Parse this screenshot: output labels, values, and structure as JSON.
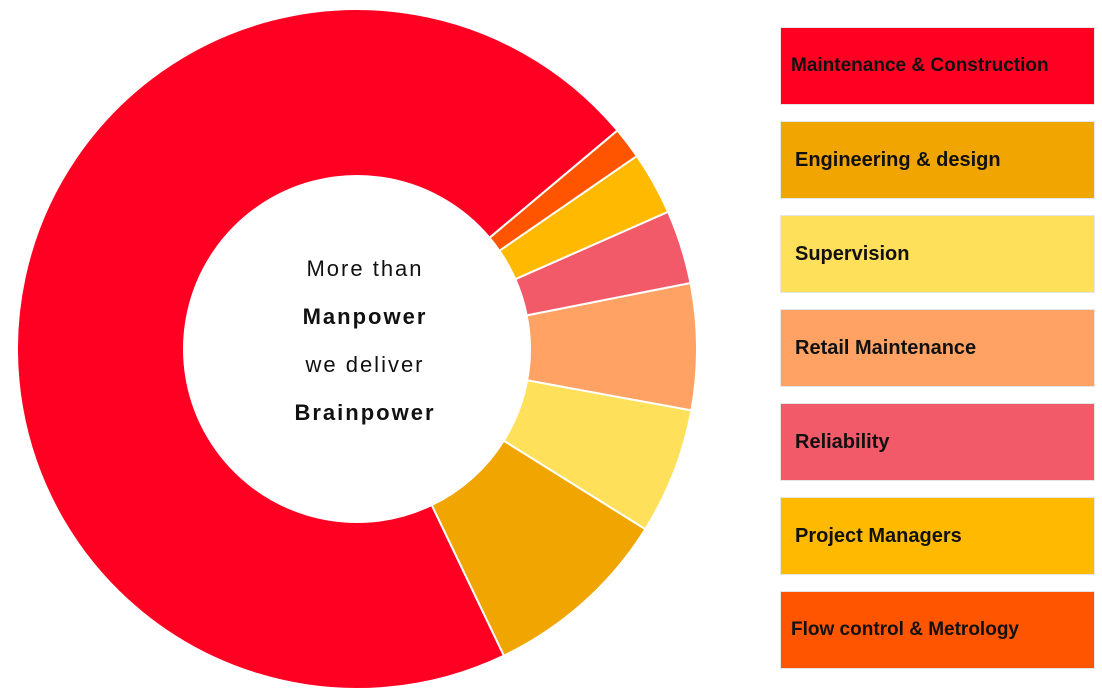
{
  "center": {
    "line1": "More than",
    "line2": "Manpower",
    "line3": "we deliver",
    "line4": "Brainpower"
  },
  "legend": [
    {
      "label": "Maintenance & Construction",
      "color": "#FF0022"
    },
    {
      "label": "Engineering & design",
      "color": "#F0A500"
    },
    {
      "label": "Supervision",
      "color": "#FFE05A"
    },
    {
      "label": "Retail Maintenance",
      "color": "#FFA263"
    },
    {
      "label": "Reliability",
      "color": "#F25A6A"
    },
    {
      "label": "Project Managers",
      "color": "#FFBA00"
    },
    {
      "label": "Flow control & Metrology",
      "color": "#FF5500"
    }
  ],
  "chart_data": {
    "type": "pie",
    "title": "",
    "donut": true,
    "categories": [
      "Maintenance & Construction",
      "Engineering & design",
      "Supervision",
      "Retail Maintenance",
      "Reliability",
      "Project Managers",
      "Flow control & Metrology"
    ],
    "values": [
      71,
      9,
      6,
      6,
      3.5,
      3,
      1.5
    ],
    "colors": [
      "#FF0022",
      "#F0A500",
      "#FFE05A",
      "#FFA263",
      "#F25A6A",
      "#FFBA00",
      "#FF5500"
    ],
    "start_angle_deg": 40,
    "direction": "counterclockwise"
  }
}
